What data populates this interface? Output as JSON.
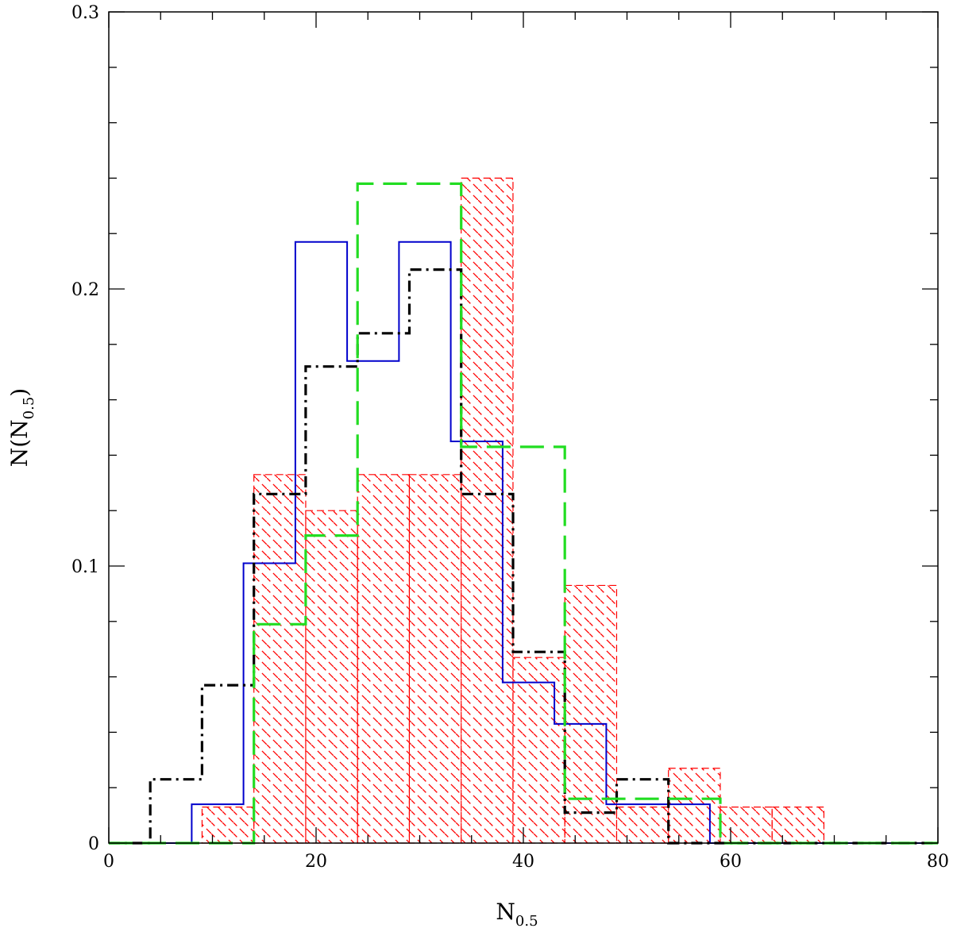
{
  "chart_data": {
    "type": "histogram",
    "xlabel": {
      "main": "N",
      "sub": "0.5"
    },
    "ylabel": {
      "pre": "N(N",
      "sub": "0.5",
      "post": ")"
    },
    "xlim": [
      0,
      80
    ],
    "ylim": [
      0,
      0.3
    ],
    "x_ticks": [
      0,
      20,
      40,
      60,
      80
    ],
    "x_tick_labels": [
      "0",
      "20",
      "40",
      "60",
      "80"
    ],
    "y_ticks": [
      0,
      0.1,
      0.2,
      0.3
    ],
    "y_tick_labels": [
      "0",
      "0.1",
      "0.2",
      "0.3"
    ],
    "grid": false,
    "series": [
      {
        "style": "hatched",
        "color": "#ff0000",
        "edges": [
          9,
          14,
          19,
          24,
          29,
          34,
          39,
          44,
          49,
          54,
          59,
          64,
          69
        ],
        "values": [
          0.013,
          0.133,
          0.12,
          0.133,
          0.133,
          0.24,
          0.067,
          0.093,
          0.013,
          0.027,
          0.013,
          0.013
        ]
      },
      {
        "style": "solid",
        "color": "#0000cc",
        "edges": [
          0,
          8,
          13,
          18,
          23,
          28,
          33,
          38,
          43,
          48,
          53,
          58,
          80
        ],
        "values": [
          0,
          0.014,
          0.101,
          0.217,
          0.174,
          0.217,
          0.145,
          0.058,
          0.043,
          0.014,
          0.014,
          0
        ]
      },
      {
        "style": "dash-dot",
        "color": "#000000",
        "edges": [
          0,
          4,
          9,
          14,
          19,
          24,
          29,
          34,
          39,
          44,
          49,
          54,
          80
        ],
        "values": [
          0,
          0.023,
          0.057,
          0.126,
          0.172,
          0.184,
          0.207,
          0.126,
          0.069,
          0.011,
          0.023,
          0
        ]
      },
      {
        "style": "long-dash",
        "color": "#22dd22",
        "edges": [
          0,
          14,
          19,
          24,
          34,
          44,
          59,
          80
        ],
        "values": [
          0,
          0.079,
          0.111,
          0.238,
          0.143,
          0.016,
          0
        ]
      }
    ]
  }
}
